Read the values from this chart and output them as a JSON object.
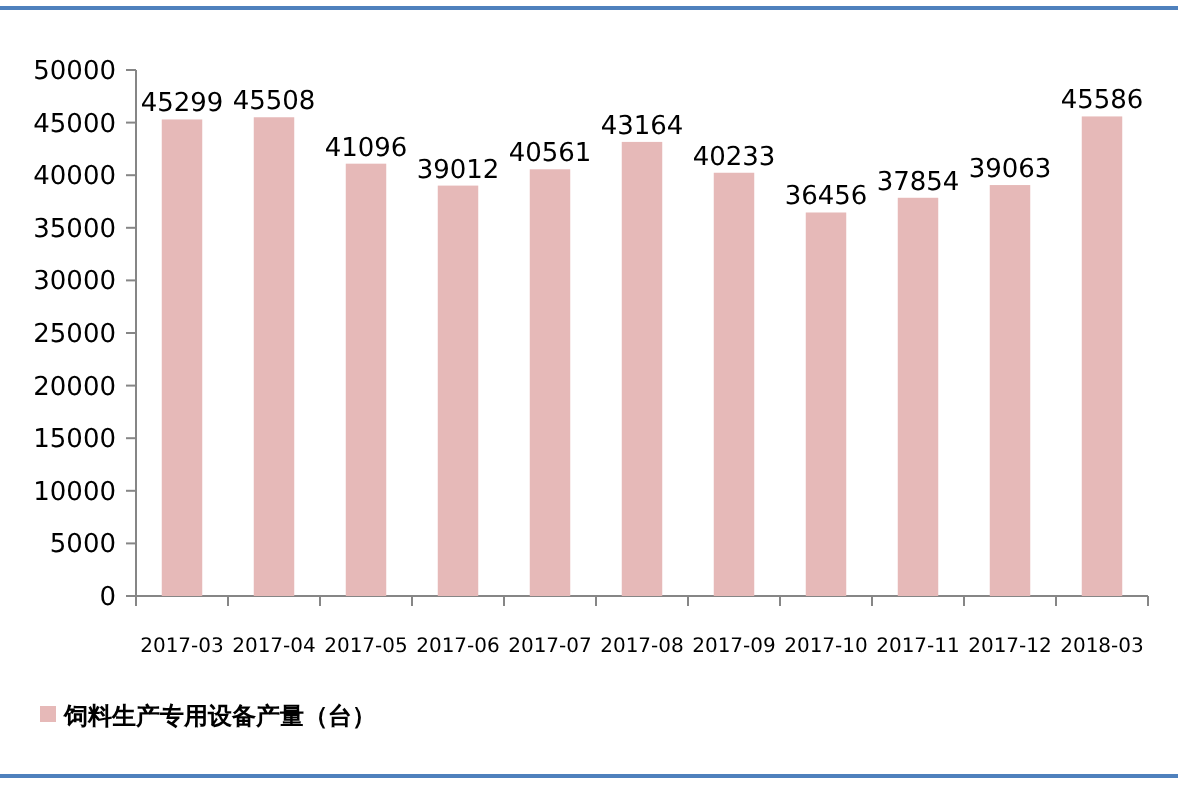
{
  "chart_data": {
    "type": "bar",
    "categories": [
      "2017-03",
      "2017-04",
      "2017-05",
      "2017-06",
      "2017-07",
      "2017-08",
      "2017-09",
      "2017-10",
      "2017-11",
      "2017-12",
      "2018-03"
    ],
    "series": [
      {
        "name": "饲料生产专用设备产量（台）",
        "color": "#e6b9b8",
        "values": [
          45299,
          45508,
          41096,
          39012,
          40561,
          43164,
          40233,
          36456,
          37854,
          39063,
          45586
        ]
      }
    ],
    "ylim": [
      0,
      50000
    ],
    "yticks": [
      0,
      5000,
      10000,
      15000,
      20000,
      25000,
      30000,
      35000,
      40000,
      45000,
      50000
    ],
    "data_labels": true,
    "legend": "bottom"
  }
}
